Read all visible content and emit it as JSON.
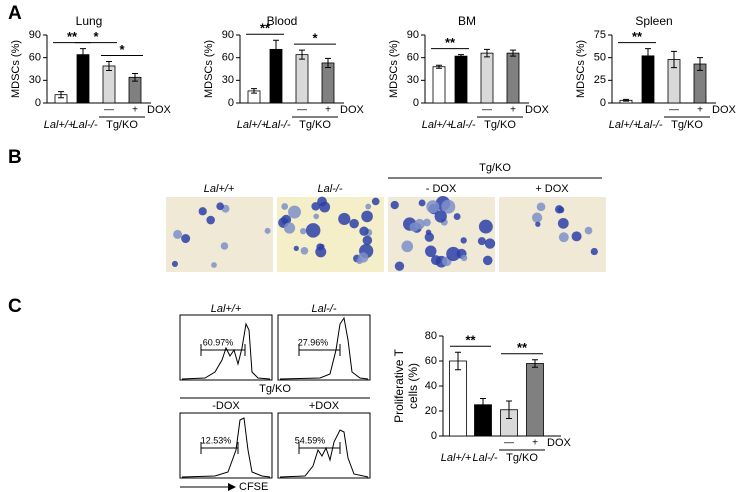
{
  "panel_labels": [
    "A",
    "B",
    "C"
  ],
  "chart_data": [
    {
      "type": "bar",
      "title": "Lung",
      "ylabel": "MDSCs (%)",
      "categories": [
        "Lal+/+",
        "Lal-/-",
        null,
        null
      ],
      "values": [
        11,
        64,
        49,
        34
      ],
      "errors": [
        4,
        8,
        6,
        5
      ],
      "colors": [
        "#ffffff",
        "#000000",
        "#d9d9d9",
        "#808080"
      ],
      "ylim": [
        0,
        90
      ],
      "yticks": [
        0,
        30,
        60,
        90
      ],
      "group_label": "Tg/KO",
      "dox_label": "DOX",
      "dox_marks": [
        "—",
        "+"
      ],
      "annotations": [
        {
          "text": "**",
          "between": [
            0,
            1
          ]
        },
        {
          "text": "*",
          "between": [
            1,
            2
          ]
        },
        {
          "text": "*",
          "between": [
            2,
            3
          ]
        }
      ]
    },
    {
      "type": "bar",
      "title": "Blood",
      "ylabel": "MDSCs (%)",
      "categories": [
        "Lal+/+",
        "Lal-/-",
        null,
        null
      ],
      "values": [
        16,
        71,
        64,
        53
      ],
      "errors": [
        3,
        12,
        6,
        6
      ],
      "colors": [
        "#ffffff",
        "#000000",
        "#d9d9d9",
        "#808080"
      ],
      "ylim": [
        0,
        90
      ],
      "yticks": [
        0,
        30,
        60,
        90
      ],
      "group_label": "Tg/KO",
      "dox_label": "DOX",
      "dox_marks": [
        "—",
        "+"
      ],
      "annotations": [
        {
          "text": "**",
          "between": [
            0,
            1
          ]
        },
        {
          "text": "*",
          "between": [
            2,
            3
          ]
        }
      ]
    },
    {
      "type": "bar",
      "title": "BM",
      "ylabel": "MDSCs (%)",
      "categories": [
        "Lal+/+",
        "Lal-/-",
        null,
        null
      ],
      "values": [
        48,
        62,
        66,
        66
      ],
      "errors": [
        2,
        2,
        5,
        4
      ],
      "colors": [
        "#ffffff",
        "#000000",
        "#d9d9d9",
        "#808080"
      ],
      "ylim": [
        0,
        90
      ],
      "yticks": [
        0,
        30,
        60,
        90
      ],
      "group_label": "Tg/KO",
      "dox_label": "DOX",
      "dox_marks": [
        "—",
        "+"
      ],
      "annotations": [
        {
          "text": "**",
          "between": [
            0,
            1
          ]
        }
      ]
    },
    {
      "type": "bar",
      "title": "Spleen",
      "ylabel": "MDSCs (%)",
      "categories": [
        "Lal+/+",
        "Lal-/-",
        null,
        null
      ],
      "values": [
        3,
        52,
        48,
        43
      ],
      "errors": [
        1,
        8,
        9,
        7
      ],
      "colors": [
        "#ffffff",
        "#000000",
        "#d9d9d9",
        "#808080"
      ],
      "ylim": [
        0,
        75
      ],
      "yticks": [
        0,
        25,
        50,
        75
      ],
      "group_label": "Tg/KO",
      "dox_label": "DOX",
      "dox_marks": [
        "—",
        "+"
      ],
      "annotations": [
        {
          "text": "**",
          "between": [
            0,
            1
          ]
        }
      ]
    },
    {
      "type": "bar",
      "ylabel": [
        "Proliferative T",
        "cells (%)"
      ],
      "categories": [
        "Lal+/+",
        "Lal-/-",
        null,
        null
      ],
      "values": [
        60,
        25,
        21,
        58
      ],
      "errors": [
        7,
        5,
        7,
        3
      ],
      "colors": [
        "#ffffff",
        "#000000",
        "#d9d9d9",
        "#808080"
      ],
      "ylim": [
        0,
        80
      ],
      "yticks": [
        0,
        20,
        40,
        60,
        80
      ],
      "group_label": "Tg/KO",
      "dox_label": "DOX",
      "dox_marks": [
        "—",
        "+"
      ],
      "annotations": [
        {
          "text": "**",
          "between": [
            0,
            1
          ]
        },
        {
          "text": "**",
          "between": [
            2,
            3
          ]
        }
      ]
    }
  ],
  "micrographs": {
    "labels": [
      "Lal+/+",
      "Lal-/-",
      "- DOX",
      "+ DOX"
    ],
    "group_label": "Tg/KO"
  },
  "histograms": {
    "labels": [
      "Lal+/+",
      "Lal-/-",
      "-DOX",
      "+DOX"
    ],
    "percents": [
      "60.97%",
      "27.96%",
      "12.53%",
      "54.59%"
    ],
    "group_label": "Tg/KO",
    "x_label": "CFSE"
  }
}
